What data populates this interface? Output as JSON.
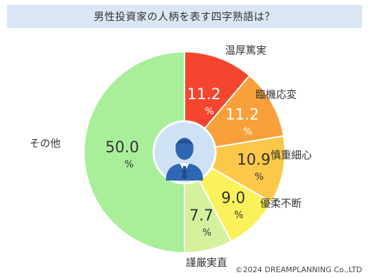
{
  "chart_data": {
    "type": "pie",
    "title": "男性投資家の人柄を表す四字熟語は？",
    "unit": "%",
    "categories": [
      "温厚篤実",
      "臨機応変",
      "慎重細心",
      "優柔不断",
      "謹厳実直",
      "その他"
    ],
    "values": [
      11.2,
      11.2,
      10.9,
      9.0,
      7.7,
      50.0
    ],
    "value_labels": [
      "11.2",
      "11.2",
      "10.9",
      "9.0",
      "7.7",
      "50.0"
    ],
    "colors": [
      "#f5452f",
      "#f9a03a",
      "#fbc84a",
      "#fbf15a",
      "#d4f29e",
      "#a9ef9a"
    ],
    "value_text_colors": [
      "#ffffff",
      "#ffffff",
      "#333333",
      "#333333",
      "#333333",
      "#333333"
    ],
    "start": "12 o'clock",
    "direction": "clockwise",
    "center_icon": "businessman-icon"
  },
  "copyright": "©2024 DREAMPLANNING Co.,LTD"
}
